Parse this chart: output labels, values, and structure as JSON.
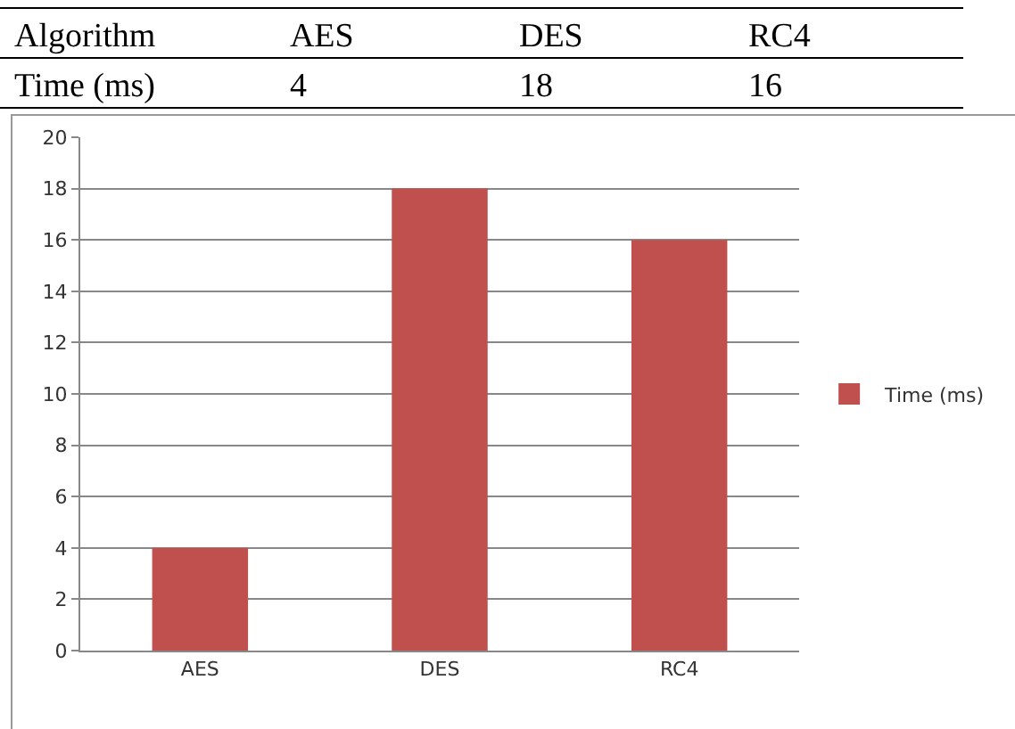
{
  "chart_data": [
    {
      "type": "other",
      "xlabel": "Algorithm",
      "categories": [
        "AES",
        "DES",
        "RC4"
      ],
      "annotations": [
        "Time (ms)",
        "4",
        "18",
        "16"
      ]
    },
    {
      "type": "bar",
      "categories": [
        "AES",
        "DES",
        "RC4"
      ],
      "series": [
        {
          "name": "Time (ms)",
          "color": "#c0504d",
          "values": [
            4,
            18,
            16
          ]
        }
      ],
      "ylim": [
        0,
        20
      ],
      "yticks": [
        0,
        2,
        4,
        6,
        8,
        10,
        12,
        14,
        16,
        18,
        20
      ],
      "grid": "y",
      "legend": "right"
    }
  ]
}
